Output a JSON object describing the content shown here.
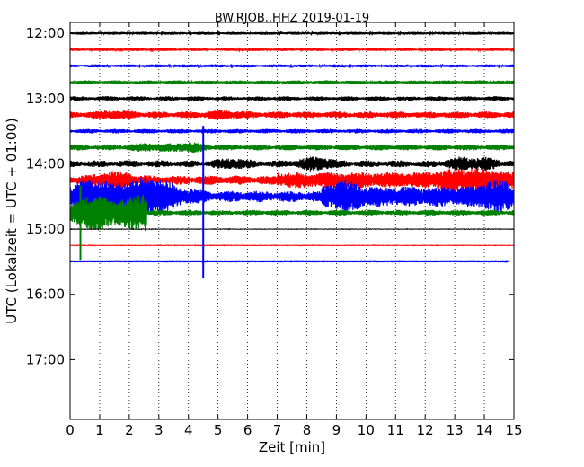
{
  "chart_data": {
    "type": "line",
    "title": "BW.RJOB..HHZ 2019-01-19",
    "xlabel": "Zeit  [min]",
    "ylabel": "UTC (Lokalzeit = UTC + 01:00)",
    "xlim": [
      0,
      15
    ],
    "ylim": [
      "17:55",
      "11:50"
    ],
    "x_ticks": [
      "0",
      "1",
      "2",
      "3",
      "4",
      "5",
      "6",
      "7",
      "8",
      "9",
      "10",
      "11",
      "12",
      "13",
      "14",
      "15"
    ],
    "y_ticks": [
      "12:00",
      "13:00",
      "14:00",
      "15:00",
      "16:00",
      "17:00"
    ],
    "grid": "vertical dotted",
    "series_colors": [
      "#000000",
      "#ff0000",
      "#0000ff",
      "#008000"
    ],
    "traces": [
      {
        "start": "12:00",
        "end_min": 15
      },
      {
        "start": "12:15",
        "end_min": 15
      },
      {
        "start": "12:30",
        "end_min": 15
      },
      {
        "start": "12:45",
        "end_min": 15
      },
      {
        "start": "13:00",
        "end_min": 15
      },
      {
        "start": "13:15",
        "end_min": 15
      },
      {
        "start": "13:30",
        "end_min": 15
      },
      {
        "start": "13:45",
        "end_min": 15
      },
      {
        "start": "14:00",
        "end_min": 15
      },
      {
        "start": "14:15",
        "end_min": 15
      },
      {
        "start": "14:30",
        "end_min": 15
      },
      {
        "start": "14:45",
        "end_min": 15
      },
      {
        "start": "15:00",
        "end_min": 15
      },
      {
        "start": "15:15",
        "end_min": 15
      },
      {
        "start": "15:30",
        "end_min": 14.85
      }
    ]
  }
}
